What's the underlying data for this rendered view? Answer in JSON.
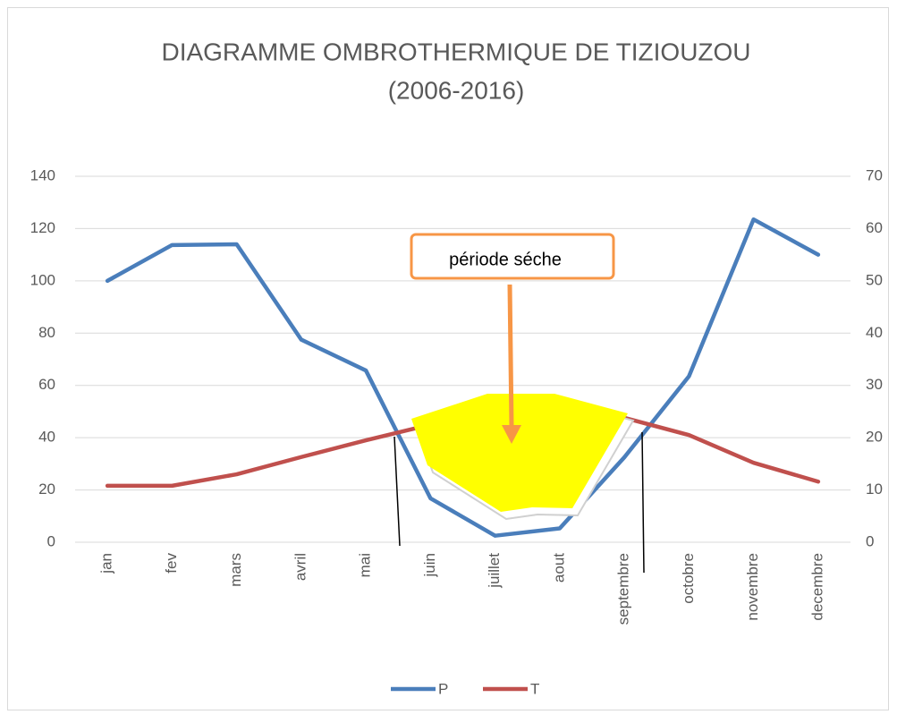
{
  "chart_data": {
    "type": "line",
    "title": [
      "DIAGRAMME OMBROTHERMIQUE DE TIZIOUZOU",
      "(2006-2016)"
    ],
    "categories": [
      "jan",
      "fev",
      "mars",
      "avril",
      "mai",
      "juin",
      "juillet",
      "aout",
      "septembre",
      "octobre",
      "novembre",
      "decembre"
    ],
    "series": [
      {
        "name": "P",
        "color": "#4a7ebb",
        "values": [
          100,
          113.7,
          114,
          77.5,
          65.7,
          16.8,
          2.5,
          5.3,
          32.5,
          63.5,
          123.5,
          110
        ]
      },
      {
        "name": "T",
        "color": "#c0504d",
        "axis": "y2",
        "values": [
          10.8,
          10.8,
          13,
          16.3,
          19.5,
          22.5,
          25,
          25.5,
          23.8,
          20.5,
          15.2,
          11.6
        ]
      }
    ],
    "ylim": [
      0,
      140
    ],
    "yticks": [
      0,
      20,
      40,
      60,
      80,
      100,
      120,
      140
    ],
    "y2lim": [
      0,
      70
    ],
    "y2ticks": [
      0,
      10,
      20,
      30,
      40,
      50,
      60,
      70
    ],
    "grid": true,
    "legend": "bottom",
    "annotation": "période séche"
  }
}
